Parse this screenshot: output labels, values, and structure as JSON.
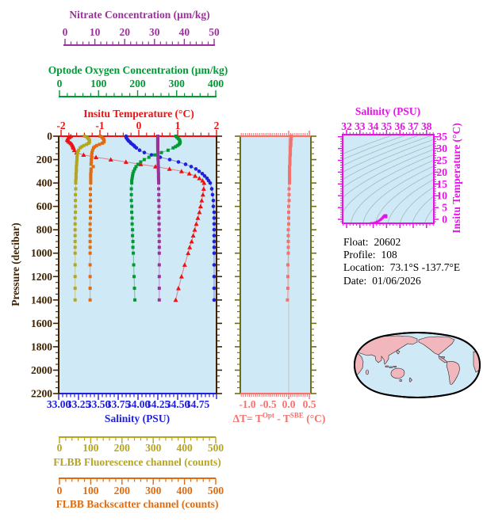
{
  "info": {
    "lines": [
      {
        "label": "Float:",
        "value": "20602"
      },
      {
        "label": "Profile:",
        "value": "108"
      },
      {
        "label": "Location:",
        "value": "73.1°S  -137.7°E"
      },
      {
        "label": "Date:",
        "value": "01/06/2026"
      }
    ]
  },
  "colors": {
    "panel_background": "#cfeaf6",
    "frame_brown": "#3f2300",
    "nitrate_purple": "#993399",
    "oxygen_green": "#009933",
    "temperature_red": "#ee1111",
    "salinity_blue": "#2020dd",
    "fluorescence_olive": "#b5a51f",
    "backscatter_orange": "#e06b10",
    "delta_t_salmon": "#f4726e",
    "delta_frame_olive": "#6e6e14",
    "ts_magenta": "#e613e6",
    "isopycnal_gray": "#9fb3ba",
    "map_land": "#f2b7bd",
    "map_ocean": "#cfeaf6"
  },
  "chart_data": [
    {
      "id": "profile-panel",
      "type": "line",
      "y_axis": {
        "title": "Pressure (decibar)",
        "color": "#3f2300",
        "ticks": [
          "0",
          "200",
          "400",
          "600",
          "800",
          "1000",
          "1200",
          "1400",
          "1600",
          "1800",
          "2000",
          "2200"
        ],
        "tick_values": [
          0,
          200,
          400,
          600,
          800,
          1000,
          1200,
          1400,
          1600,
          1800,
          2000,
          2200
        ],
        "minor_step": 50,
        "ylim": [
          0,
          2200
        ]
      },
      "x_axes": [
        {
          "id": "nitrate",
          "title": "Nitrate Concentration (µm/kg)",
          "color": "#993399",
          "position": "top",
          "ticks": [
            "0",
            "10",
            "20",
            "30",
            "40",
            "50"
          ],
          "tick_values": [
            0,
            10,
            20,
            30,
            40,
            50
          ]
        },
        {
          "id": "oxygen",
          "title": "Optode Oxygen Concentration (µm/kg)",
          "color": "#009933",
          "position": "top",
          "ticks": [
            "0",
            "100",
            "200",
            "300",
            "400"
          ],
          "tick_values": [
            0,
            100,
            200,
            300,
            400
          ]
        },
        {
          "id": "temperature",
          "title": "Insitu Temperature (°C)",
          "color": "#ee1111",
          "position": "top",
          "ticks": [
            "-2",
            "-1",
            "0",
            "1",
            "2"
          ],
          "tick_values": [
            -2,
            -1,
            0,
            1,
            2
          ]
        },
        {
          "id": "salinity",
          "title": "Salinity (PSU)",
          "color": "#2020dd",
          "position": "bottom",
          "ticks": [
            "33.00",
            "33.25",
            "33.50",
            "33.75",
            "34.00",
            "34.25",
            "34.50",
            "34.75"
          ],
          "tick_values": [
            33.0,
            33.25,
            33.5,
            33.75,
            34.0,
            34.25,
            34.5,
            34.75
          ]
        },
        {
          "id": "fluorescence",
          "title": "FLBB Fluorescence channel (counts)",
          "color": "#b5a51f",
          "position": "bottom",
          "ticks": [
            "0",
            "100",
            "200",
            "300",
            "400",
            "500"
          ],
          "tick_values": [
            0,
            100,
            200,
            300,
            400,
            500
          ]
        },
        {
          "id": "backscatter",
          "title": "FLBB Backscatter channel (counts)",
          "color": "#e06b10",
          "position": "bottom",
          "ticks": [
            "0",
            "100",
            "200",
            "300",
            "400",
            "500"
          ],
          "tick_values": [
            0,
            100,
            200,
            300,
            400,
            500
          ]
        }
      ],
      "pressure": [
        0,
        10,
        20,
        30,
        40,
        50,
        60,
        70,
        80,
        90,
        100,
        120,
        140,
        160,
        180,
        200,
        220,
        240,
        260,
        280,
        300,
        320,
        340,
        360,
        380,
        400,
        450,
        500,
        550,
        600,
        650,
        700,
        750,
        800,
        850,
        900,
        950,
        1000,
        1100,
        1200,
        1300,
        1400
      ],
      "series": [
        {
          "id": "insitu-temperature",
          "name": "Insitu Temperature",
          "axis": "temperature",
          "color": "#ee1111",
          "marker": "triangle",
          "values": [
            -1.75,
            -1.79,
            -1.83,
            -1.84,
            -1.82,
            -1.79,
            -1.75,
            -1.72,
            -1.7,
            -1.69,
            -1.68,
            -1.66,
            -1.6,
            -1.42,
            -1.1,
            -0.72,
            -0.33,
            0.05,
            0.43,
            0.79,
            1.1,
            1.3,
            1.45,
            1.56,
            1.64,
            1.68,
            1.67,
            1.65,
            1.62,
            1.59,
            1.56,
            1.52,
            1.48,
            1.44,
            1.4,
            1.36,
            1.31,
            1.27,
            1.18,
            1.1,
            1.02,
            0.95
          ]
        },
        {
          "id": "salinity",
          "name": "Salinity",
          "axis": "salinity",
          "color": "#2020dd",
          "marker": "circle",
          "values": [
            33.85,
            33.85,
            33.86,
            33.87,
            33.88,
            33.9,
            33.91,
            33.93,
            33.95,
            33.96,
            33.98,
            34.02,
            34.08,
            34.17,
            34.28,
            34.4,
            34.51,
            34.6,
            34.67,
            34.73,
            34.77,
            34.81,
            34.84,
            34.87,
            34.89,
            34.91,
            34.93,
            34.94,
            34.95,
            34.95,
            34.96,
            34.96,
            34.96,
            34.96,
            34.96,
            34.96,
            34.96,
            34.96,
            34.96,
            34.96,
            34.96,
            34.96
          ]
        },
        {
          "id": "oxygen",
          "name": "Optode Oxygen",
          "axis": "oxygen",
          "color": "#009933",
          "marker": "square",
          "values": [
            298,
            301,
            304,
            307,
            308,
            309,
            308,
            306,
            302,
            297,
            291,
            278,
            261,
            244,
            229,
            217,
            208,
            201,
            196,
            193,
            190,
            188,
            187,
            186,
            185,
            185,
            184,
            184,
            184,
            185,
            185,
            186,
            186,
            187,
            187,
            188,
            188,
            189,
            190,
            191,
            192,
            193
          ]
        },
        {
          "id": "nitrate",
          "name": "Nitrate",
          "axis": "nitrate",
          "color": "#993399",
          "marker": "square",
          "values": [
            31.1,
            31.1,
            31.1,
            31.1,
            31.1,
            31.1,
            31.1,
            31.1,
            31.1,
            31.1,
            31.1,
            31.1,
            31.15,
            31.15,
            31.2,
            31.2,
            31.25,
            31.25,
            31.3,
            31.3,
            31.3,
            31.35,
            31.35,
            31.35,
            31.4,
            31.4,
            31.4,
            31.45,
            31.45,
            31.5,
            31.5,
            31.5,
            31.55,
            31.55,
            31.55,
            31.6,
            31.6,
            31.6,
            31.6,
            31.6,
            31.6,
            31.6
          ]
        },
        {
          "id": "fluorescence",
          "name": "FLBB Fluorescence",
          "axis": "fluorescence",
          "color": "#b5a51f",
          "marker": "square",
          "values": [
            80,
            88,
            92,
            95,
            96,
            96,
            93,
            87,
            78,
            71,
            66,
            61,
            58,
            57,
            56,
            56,
            55,
            55,
            54,
            54,
            54,
            53,
            53,
            53,
            52,
            52,
            52,
            51,
            51,
            51,
            51,
            50,
            50,
            50,
            50,
            50,
            50,
            50,
            50,
            50,
            50,
            50
          ]
        },
        {
          "id": "backscatter",
          "name": "FLBB Backscatter",
          "axis": "backscatter",
          "color": "#e06b10",
          "marker": "square",
          "values": [
            130,
            136,
            140,
            142,
            143,
            142,
            137,
            128,
            119,
            113,
            109,
            106,
            104,
            103,
            103,
            102,
            102,
            101,
            108,
            101,
            101,
            100,
            100,
            100,
            100,
            100,
            99,
            99,
            99,
            99,
            99,
            99,
            98,
            98,
            98,
            98,
            98,
            98,
            98,
            98,
            98,
            98
          ]
        }
      ]
    },
    {
      "id": "delta-t-panel",
      "type": "line",
      "xlabel": "ΔT= TOpt - TSBE (°C)",
      "xlabel_parts": {
        "prefix": "ΔT= T",
        "sup1": "Opt",
        "mid": " - T",
        "sup2": "SBE",
        "suffix": " (°C)"
      },
      "color": "#f4726e",
      "frame_color": "#6e6e14",
      "x_ticks": [
        "-1.0",
        "-0.5",
        "0.0",
        "0.5"
      ],
      "x_tick_values": [
        -1.0,
        -0.5,
        0.0,
        0.5
      ],
      "xlim": [
        -1.17,
        0.54
      ],
      "ylim": [
        0,
        2200
      ],
      "zero_line": true,
      "pressure": [
        0,
        10,
        20,
        30,
        40,
        50,
        60,
        70,
        80,
        90,
        100,
        120,
        140,
        160,
        180,
        200,
        220,
        240,
        260,
        280,
        300,
        320,
        340,
        360,
        380,
        400,
        450,
        500,
        550,
        600,
        650,
        700,
        750,
        800,
        850,
        900,
        950,
        1000,
        1100,
        1200,
        1300,
        1400
      ],
      "values": [
        0.06,
        0.06,
        0.06,
        0.05,
        0.05,
        0.05,
        0.05,
        0.05,
        0.05,
        0.04,
        0.04,
        0.04,
        0.04,
        0.04,
        0.03,
        0.03,
        0.03,
        0.03,
        0.02,
        0.02,
        0.02,
        0.02,
        0.02,
        0.02,
        0.02,
        0.02,
        0.01,
        0.01,
        0.01,
        0.0,
        0.0,
        0.0,
        0.0,
        -0.01,
        -0.01,
        -0.01,
        -0.01,
        -0.01,
        -0.02,
        -0.02,
        -0.02,
        -0.03
      ]
    },
    {
      "id": "ts-panel",
      "type": "line",
      "xlabel": "Salinity (PSU)",
      "ylabel": "Insitu Temperature (°C)",
      "axis_color": "#e613e6",
      "x_ticks": [
        "32",
        "33",
        "34",
        "35",
        "36",
        "37",
        "38"
      ],
      "x_tick_values": [
        32,
        33,
        34,
        35,
        36,
        37,
        38
      ],
      "y_ticks": [
        "0",
        "5",
        "10",
        "15",
        "20",
        "25",
        "30",
        "35"
      ],
      "y_tick_values": [
        0,
        5,
        10,
        15,
        20,
        25,
        30,
        35
      ],
      "xlim": [
        31.7,
        38.55
      ],
      "ylim": [
        -1.7,
        36.0
      ],
      "isopycnals": {
        "color": "#9fb3ba",
        "sigma_levels_from": 20.0,
        "sigma_levels_to": 31.0,
        "step": 0.75
      },
      "series_color": "#e613e6",
      "note": "T-S curve drawn from the salinity and temperature profile series of panel 1"
    }
  ]
}
